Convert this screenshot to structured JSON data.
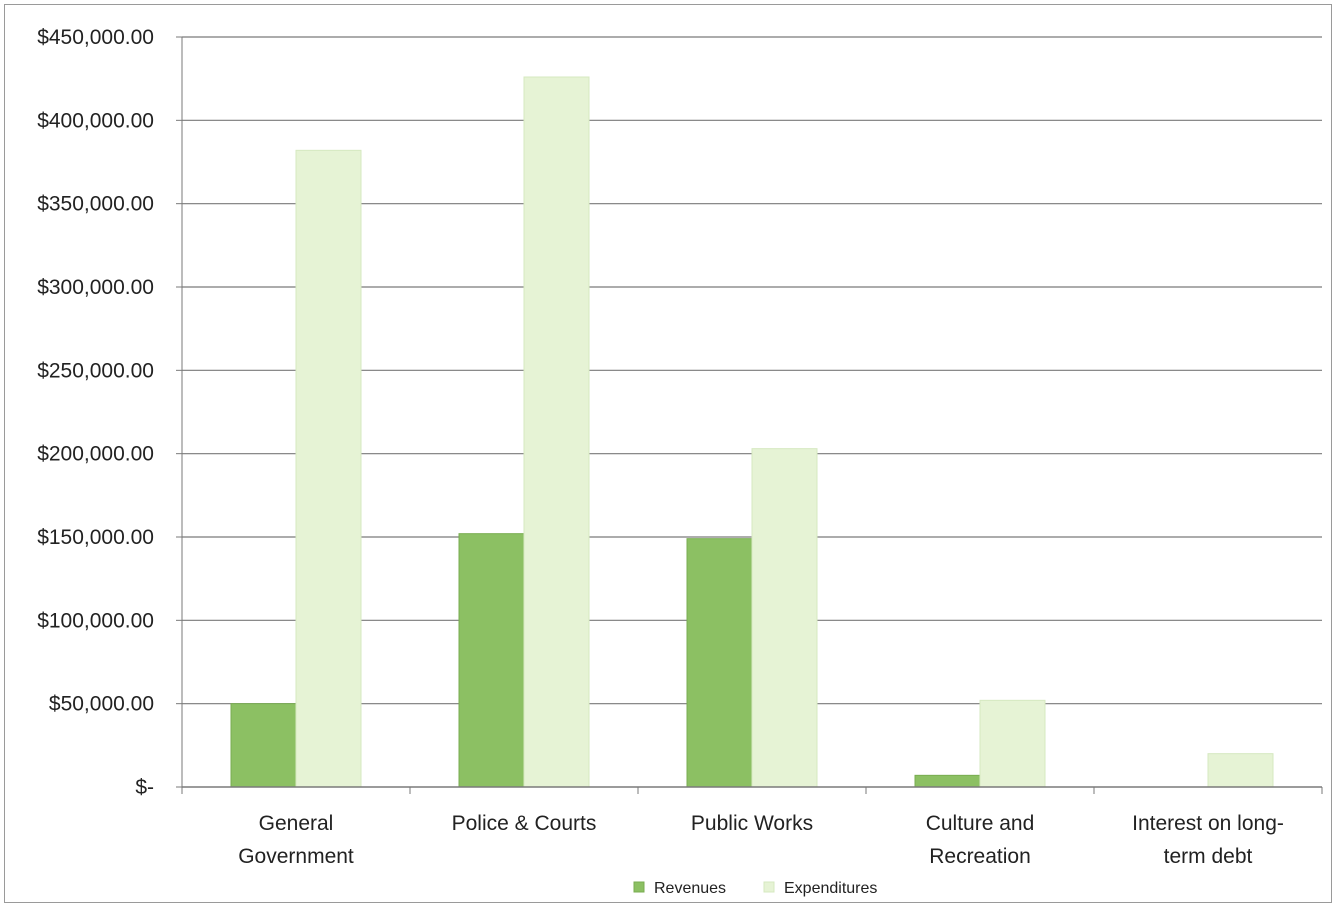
{
  "chart_data": {
    "type": "bar",
    "title": "",
    "xlabel": "",
    "ylabel": "",
    "categories": [
      [
        "General",
        "Government"
      ],
      [
        "Police & Courts"
      ],
      [
        "Public Works"
      ],
      [
        "Culture and",
        "Recreation"
      ],
      [
        "Interest on long-",
        "term debt"
      ]
    ],
    "series": [
      {
        "name": "Revenues",
        "color": "#8cc063",
        "values": [
          50000,
          152000,
          149000,
          7000,
          0
        ]
      },
      {
        "name": "Expenditures",
        "color": "#e6f3d5",
        "values": [
          382000,
          426000,
          203000,
          52000,
          20000
        ]
      }
    ],
    "ylim": [
      0,
      450000
    ],
    "yticks": [
      0,
      50000,
      100000,
      150000,
      200000,
      250000,
      300000,
      350000,
      400000,
      450000
    ],
    "ytick_labels": [
      "$-",
      "$50,000.00",
      "$100,000.00",
      "$150,000.00",
      "$200,000.00",
      "$250,000.00",
      "$300,000.00",
      "$350,000.00",
      "$400,000.00",
      "$450,000.00"
    ],
    "grid": true,
    "legend_position": "bottom-center"
  }
}
